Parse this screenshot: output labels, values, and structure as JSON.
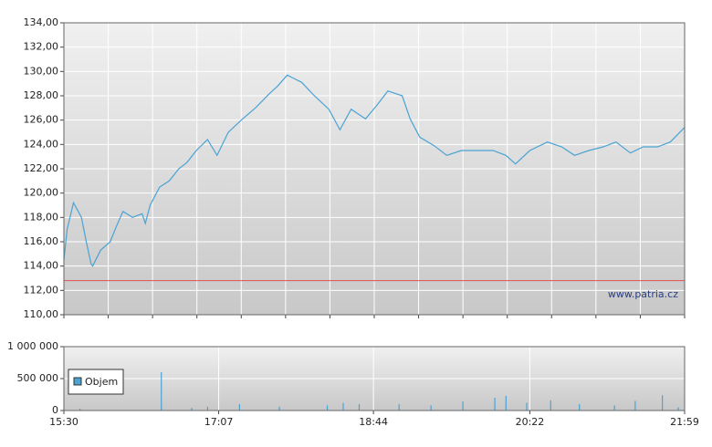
{
  "chart_data": [
    {
      "type": "line",
      "x": [
        "15:30",
        "15:32",
        "15:36",
        "15:39",
        "15:41",
        "15:44",
        "15:47",
        "15:48",
        "15:53",
        "15:59",
        "16:03",
        "16:07",
        "16:13",
        "16:19",
        "16:21",
        "16:24",
        "16:30",
        "16:36",
        "16:42",
        "16:47",
        "16:53",
        "17:00",
        "17:06",
        "17:13",
        "17:22",
        "17:30",
        "17:39",
        "17:44",
        "17:50",
        "17:53",
        "17:59",
        "18:07",
        "18:16",
        "18:23",
        "18:30",
        "18:39",
        "18:46",
        "18:53",
        "19:02",
        "19:07",
        "19:13",
        "19:22",
        "19:30",
        "19:39",
        "19:47",
        "19:59",
        "20:07",
        "20:13",
        "20:22",
        "20:33",
        "20:42",
        "20:50",
        "20:59",
        "21:08",
        "21:16",
        "21:25",
        "21:33",
        "21:42",
        "21:50",
        "21:59"
      ],
      "series": [
        {
          "color": "#4aa3d3",
          "values": [
            114.5,
            117,
            119.2,
            118.5,
            118,
            116,
            114.2,
            114,
            115.3,
            116,
            117.3,
            118.5,
            118,
            118.3,
            117.5,
            119,
            120.5,
            121,
            122,
            122.5,
            123.5,
            124.4,
            123.1,
            125,
            126.1,
            127,
            128.2,
            128.8,
            129.7,
            129.5,
            129.1,
            128,
            126.9,
            125.2,
            126.9,
            126.1,
            127.2,
            128.4,
            128,
            126.1,
            124.6,
            123.9,
            123.1,
            123.5,
            123.5,
            123.5,
            123.1,
            122.4,
            123.5,
            124.2,
            123.8,
            123.1,
            123.5,
            123.8,
            124.2,
            123.3,
            123.8,
            123.8,
            124.2,
            125.4
          ]
        }
      ],
      "xlim": [
        "15:30",
        "21:59"
      ],
      "ylim": [
        110,
        134
      ],
      "yticks": [
        {
          "value": 110,
          "label": "110,00"
        },
        {
          "value": 112,
          "label": "112,00"
        },
        {
          "value": 114,
          "label": "114,00"
        },
        {
          "value": 116,
          "label": "116,00"
        },
        {
          "value": 118,
          "label": "118,00"
        },
        {
          "value": 120,
          "label": "120,00"
        },
        {
          "value": 122,
          "label": "122,00"
        },
        {
          "value": 124,
          "label": "124,00"
        },
        {
          "value": 126,
          "label": "126,00"
        },
        {
          "value": 128,
          "label": "128,00"
        },
        {
          "value": 130,
          "label": "130,00"
        },
        {
          "value": 132,
          "label": "132,00"
        },
        {
          "value": 134,
          "label": "134,00"
        }
      ],
      "reference_line": 112.8,
      "reference_color": "#e05050",
      "watermark": "www.patria.cz",
      "grid": true
    },
    {
      "type": "bar",
      "x": [
        "15:30",
        "15:40",
        "16:31",
        "16:50",
        "17:00",
        "17:20",
        "17:45",
        "18:15",
        "18:25",
        "18:35",
        "19:00",
        "19:20",
        "19:40",
        "20:00",
        "20:07",
        "20:20",
        "20:35",
        "20:53",
        "21:15",
        "21:28",
        "21:45",
        "21:55"
      ],
      "series": [
        {
          "name": "Objem",
          "color": "#4aa3d3",
          "values": [
            20000,
            30000,
            600000,
            40000,
            60000,
            100000,
            60000,
            80000,
            120000,
            100000,
            100000,
            80000,
            140000,
            200000,
            230000,
            120000,
            160000,
            100000,
            80000,
            150000,
            240000,
            50000
          ]
        }
      ],
      "xlim": [
        "15:30",
        "21:59"
      ],
      "xticks": [
        "15:30",
        "17:07",
        "18:44",
        "20:22",
        "21:59"
      ],
      "ylim": [
        0,
        1000000
      ],
      "yticks": [
        0,
        {
          "value": 500000,
          "label": "500 000"
        },
        {
          "value": 1000000,
          "label": "1 000 000"
        }
      ],
      "grid": true
    }
  ]
}
